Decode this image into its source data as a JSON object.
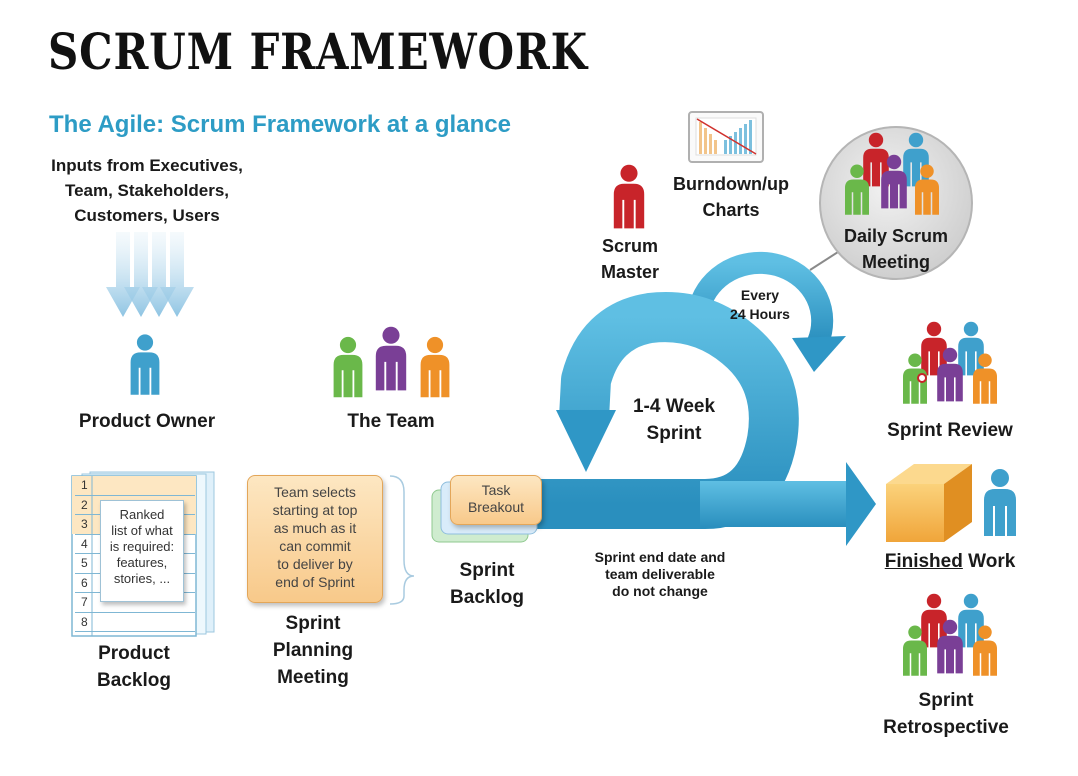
{
  "header": {
    "title": "SCRUM FRAMEWORK",
    "subtitle": "The Agile: Scrum Framework at a glance"
  },
  "inputs": {
    "line1": "Inputs from Executives,",
    "line2": "Team, Stakeholders,",
    "line3": "Customers, Users"
  },
  "roles": {
    "product_owner": "Product Owner",
    "the_team": "The Team",
    "scrum_master_1": "Scrum",
    "scrum_master_2": "Master"
  },
  "charts": {
    "line1": "Burndown/up",
    "line2": "Charts"
  },
  "daily": {
    "line1": "Daily Scrum",
    "line2": "Meeting",
    "every1": "Every",
    "every2": "24 Hours"
  },
  "sprint": {
    "line1": "1-4 Week",
    "line2": "Sprint"
  },
  "backlog": {
    "rows": [
      "1",
      "2",
      "3",
      "4",
      "5",
      "6",
      "7",
      "8"
    ],
    "note": [
      "Ranked",
      "list of what",
      "is required:",
      "features,",
      "stories, ..."
    ],
    "label1": "Product",
    "label2": "Backlog"
  },
  "planning": {
    "note": [
      "Team selects",
      "starting at top",
      "as much as it",
      "can commit",
      "to deliver by",
      "end of Sprint"
    ],
    "label1": "Sprint",
    "label2": "Planning",
    "label3": "Meeting"
  },
  "sprint_backlog": {
    "task1": "Task",
    "task2": "Breakout",
    "label1": "Sprint",
    "label2": "Backlog"
  },
  "sprint_end": {
    "line1": "Sprint end date and",
    "line2": "team deliverable",
    "line3": "do not change"
  },
  "outputs": {
    "review": "Sprint Review",
    "finished_a": "Finished",
    "finished_b": " Work",
    "retro1": "Sprint",
    "retro2": "Retrospective"
  },
  "colors": {
    "arrow_blue": "#3aa3cf",
    "accent": "#2d9cc5",
    "red": "#c8242a",
    "green": "#6ab84a",
    "purple": "#7a3f96",
    "orange": "#ef9128",
    "blue_person": "#3fa0cc"
  }
}
